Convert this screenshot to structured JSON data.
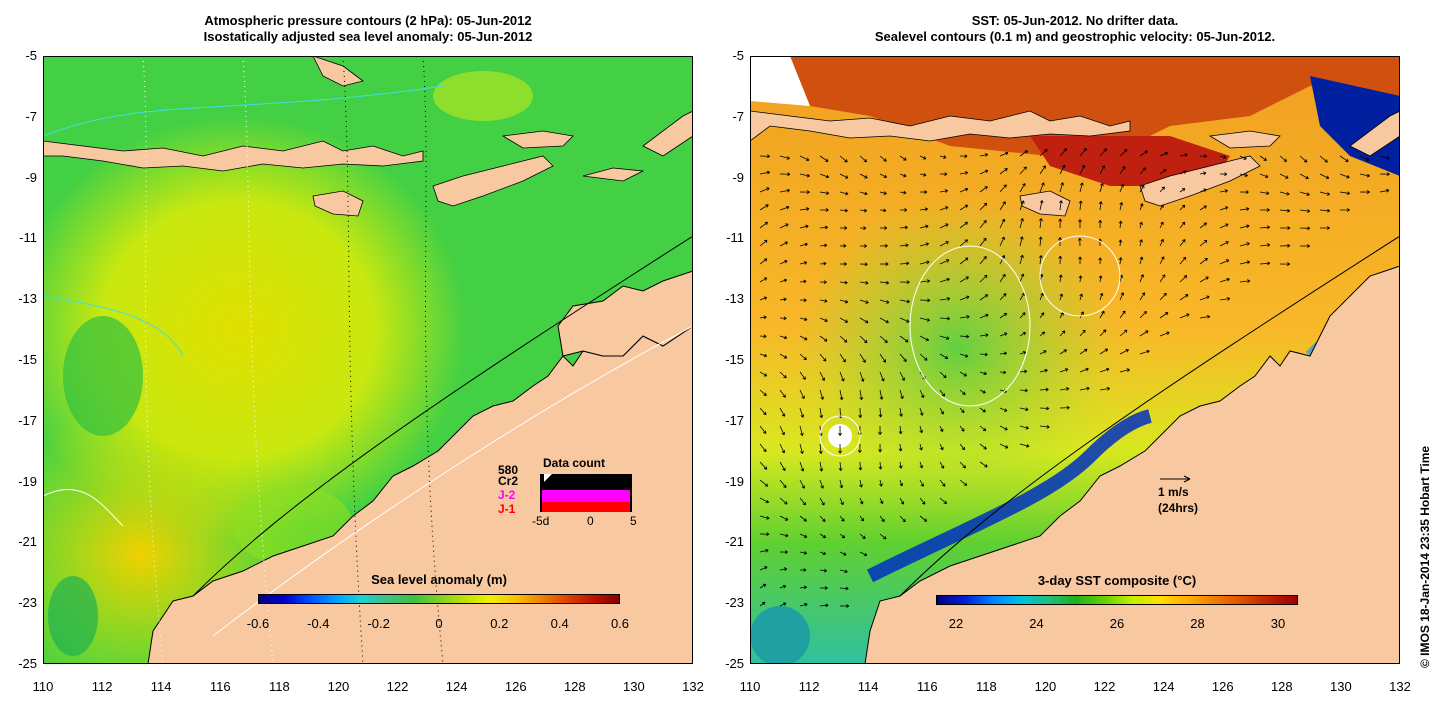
{
  "left_panel": {
    "title_line1": "Atmospheric pressure contours (2 hPa): 05-Jun-2012",
    "title_line2": "Isostatically adjusted sea level anomaly: 05-Jun-2012",
    "colorbar_title": "Sea level anomaly (m)",
    "colorbar_ticks": [
      "-0.6",
      "-0.4",
      "-0.2",
      "0",
      "0.2",
      "0.4",
      "0.6"
    ],
    "data_count": {
      "title": "Data count",
      "labels": [
        "580",
        "Cr2",
        "J-2",
        "J-1"
      ],
      "label_colors": [
        "#000000",
        "#000000",
        "#ff00ff",
        "#ff0000"
      ],
      "axis_ticks": [
        "-5d",
        "0",
        "5"
      ]
    }
  },
  "right_panel": {
    "title_line1": "SST: 05-Jun-2012. No drifter data.",
    "title_line2": "Sealevel contours (0.1 m) and geostrophic velocity: 05-Jun-2012.",
    "colorbar_title": "3-day SST composite (°C)",
    "colorbar_ticks": [
      "22",
      "24",
      "26",
      "28",
      "30"
    ],
    "speed_key_line1": "1 m/s",
    "speed_key_line2": "(24hrs)"
  },
  "axes": {
    "lat_ticks": [
      "-5",
      "-7",
      "-9",
      "-11",
      "-13",
      "-15",
      "-17",
      "-19",
      "-21",
      "-23",
      "-25"
    ],
    "lon_ticks": [
      "110",
      "112",
      "114",
      "116",
      "118",
      "120",
      "122",
      "124",
      "126",
      "128",
      "130",
      "132"
    ]
  },
  "copyright": "© IMOS 18-Jan-2014 23:35 Hobart Time",
  "colors": {
    "land": "#f8c8a0",
    "sea_green": "#40d040",
    "sst_orange": "#f0a020"
  }
}
